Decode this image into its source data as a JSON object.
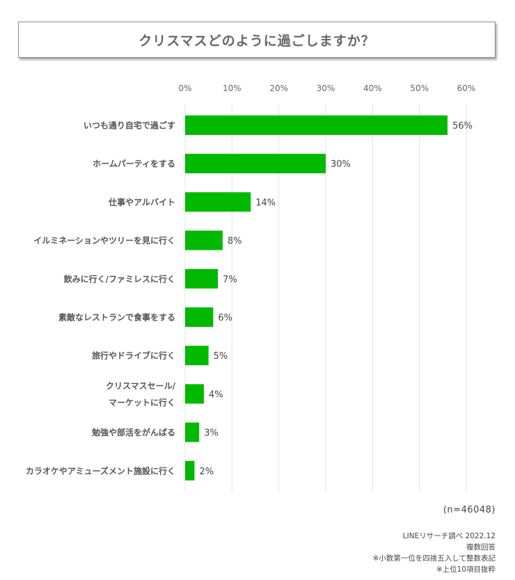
{
  "title": "クリスマスどのように過ごしますか？",
  "sample_size": "(n=46048)",
  "notes": [
    "LINEリサーチ調べ 2022.12",
    "複数回答",
    "※小数第一位を四捨五入して整数表記",
    "※上位10項目抜粋"
  ],
  "colors": {
    "bar": "#00b900",
    "grid": "#e3e3e3",
    "text": "#555555"
  },
  "chart_data": {
    "type": "bar",
    "orientation": "horizontal",
    "categories": [
      [
        "いつも通り自宅で過ごす"
      ],
      [
        "ホームパーティをする"
      ],
      [
        "仕事やアルバイト"
      ],
      [
        "イルミネーションやツリーを見に行く"
      ],
      [
        "飲みに行く/ファミレスに行く"
      ],
      [
        "素敵なレストランで食事をする"
      ],
      [
        "旅行やドライブに行く"
      ],
      [
        "クリスマスセール/",
        "マーケットに行く"
      ],
      [
        "勉強や部活をがんばる"
      ],
      [
        "カラオケやアミューズメント施設に行く"
      ]
    ],
    "values": [
      56,
      30,
      14,
      8,
      7,
      6,
      5,
      4,
      3,
      2
    ],
    "value_labels": [
      "56%",
      "30%",
      "14%",
      "8%",
      "7%",
      "6%",
      "5%",
      "4%",
      "3%",
      "2%"
    ],
    "x_ticks": [
      0,
      10,
      20,
      30,
      40,
      50,
      60
    ],
    "x_tick_labels": [
      "0%",
      "10%",
      "20%",
      "30%",
      "40%",
      "50%",
      "60%"
    ],
    "xlim": [
      0,
      60
    ],
    "grid": true,
    "axis_position": "top"
  }
}
